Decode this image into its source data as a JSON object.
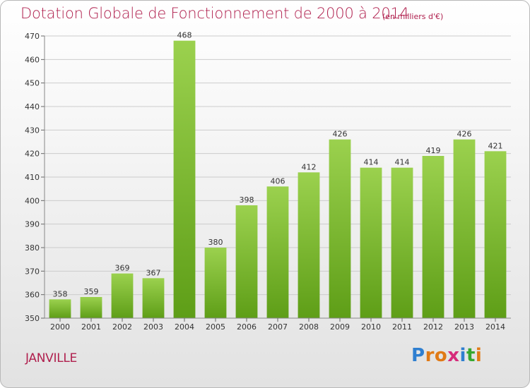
{
  "title": "Dotation Globale de Fonctionnement de 2000 à 2014",
  "subtitle": "(en milliers d'€)",
  "commune": "JANVILLE",
  "logo": {
    "text": "Proxiti",
    "letters": [
      "P",
      "r",
      "o",
      "x",
      "i",
      "t",
      "i"
    ],
    "letter_colors": [
      "#2f7fd0",
      "#e07a16",
      "#e07a16",
      "#d62b7a",
      "#2f7fd0",
      "#36a82f",
      "#e07a16"
    ]
  },
  "colors": {
    "title": "#b0204e",
    "bar_top": "#9bd14e",
    "bar_bottom": "#5e9e17",
    "grid": "#cccccc"
  },
  "chart_data": {
    "type": "bar",
    "title": "Dotation Globale de Fonctionnement de 2000 à 2014",
    "subtitle": "(en milliers d'€)",
    "categories": [
      "2000",
      "2001",
      "2002",
      "2003",
      "2004",
      "2005",
      "2006",
      "2007",
      "2008",
      "2009",
      "2010",
      "2011",
      "2012",
      "2013",
      "2014"
    ],
    "values": [
      358,
      359,
      369,
      367,
      468,
      380,
      398,
      406,
      412,
      426,
      414,
      414,
      419,
      426,
      421
    ],
    "ylim": [
      350,
      470
    ],
    "yticks": [
      350,
      360,
      370,
      380,
      390,
      400,
      410,
      420,
      430,
      440,
      450,
      460,
      470
    ],
    "grid": true,
    "xlabel": "",
    "ylabel": ""
  }
}
